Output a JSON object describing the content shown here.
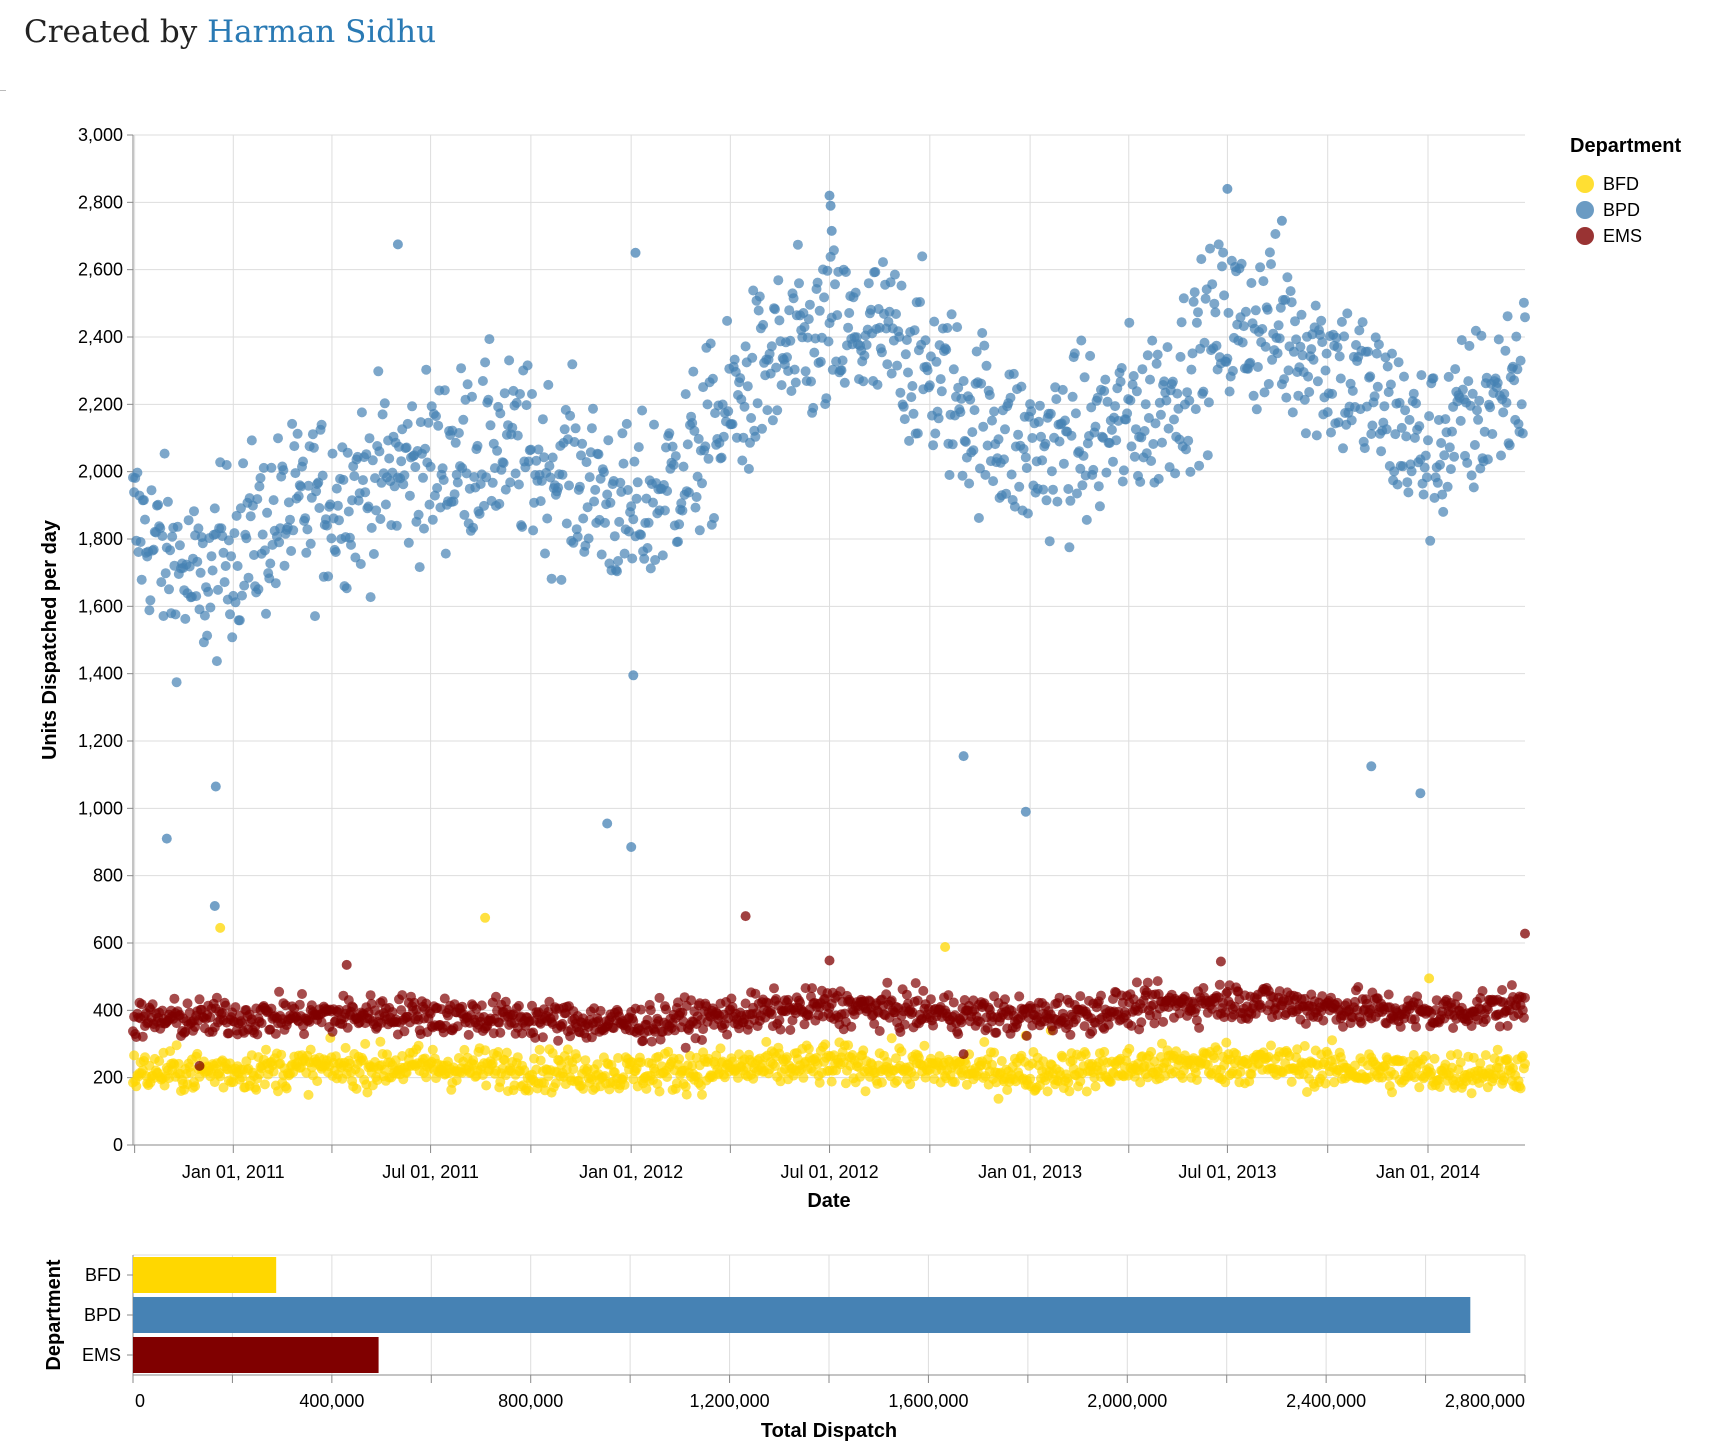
{
  "header": {
    "credit_prefix": "Created by",
    "credit_author": "Harman Sidhu"
  },
  "chart_data": [
    {
      "type": "scatter",
      "xlabel": "Date",
      "ylabel": "Units Dispatched per day",
      "x_range": [
        "2010-10-01",
        "2014-03-31"
      ],
      "ylim": [
        0,
        3000
      ],
      "y_ticks": [
        0,
        200,
        400,
        600,
        800,
        1000,
        1200,
        1400,
        1600,
        1800,
        2000,
        2200,
        2400,
        2600,
        2800,
        3000
      ],
      "x_tick_labels": [
        {
          "date": "2011-01-01",
          "label": "Jan 01, 2011"
        },
        {
          "date": "2011-07-01",
          "label": "Jul 01, 2011"
        },
        {
          "date": "2012-01-01",
          "label": "Jan 01, 2012"
        },
        {
          "date": "2012-07-01",
          "label": "Jul 01, 2012"
        },
        {
          "date": "2013-01-01",
          "label": "Jan 01, 2013"
        },
        {
          "date": "2013-07-01",
          "label": "Jul 01, 2013"
        },
        {
          "date": "2014-01-01",
          "label": "Jan 01, 2014"
        }
      ],
      "grid": true,
      "legend": {
        "title": "Department",
        "placement": "top-right",
        "items": [
          {
            "label": "BFD",
            "color": "#FFD700"
          },
          {
            "label": "BPD",
            "color": "#4682B4"
          },
          {
            "label": "EMS",
            "color": "#800000"
          }
        ]
      },
      "series": [
        {
          "name": "BFD",
          "color": "#FFD700",
          "trend": [
            [
              "2010-10-01",
              215
            ],
            [
              "2011-06-01",
              235
            ],
            [
              "2012-01-01",
              215
            ],
            [
              "2012-07-01",
              240
            ],
            [
              "2013-01-01",
              215
            ],
            [
              "2013-07-01",
              245
            ],
            [
              "2014-01-01",
              215
            ],
            [
              "2014-03-31",
              225
            ]
          ],
          "spread": 30,
          "outliers": [
            [
              "2010-12-20",
              645
            ],
            [
              "2011-08-20",
              675
            ],
            [
              "2012-10-15",
              588
            ],
            [
              "2014-01-02",
              495
            ],
            [
              "2012-12-28",
              325
            ],
            [
              "2013-01-20",
              340
            ]
          ]
        },
        {
          "name": "BPD",
          "color": "#4682B4",
          "trend": [
            [
              "2010-10-01",
              1850
            ],
            [
              "2010-12-01",
              1650
            ],
            [
              "2011-01-01",
              1780
            ],
            [
              "2011-03-01",
              1880
            ],
            [
              "2011-06-01",
              2000
            ],
            [
              "2011-09-01",
              2080
            ],
            [
              "2011-12-01",
              1950
            ],
            [
              "2012-01-01",
              1850
            ],
            [
              "2012-03-01",
              2050
            ],
            [
              "2012-05-01",
              2300
            ],
            [
              "2012-07-01",
              2400
            ],
            [
              "2012-09-01",
              2380
            ],
            [
              "2012-11-01",
              2200
            ],
            [
              "2013-01-01",
              2050
            ],
            [
              "2013-03-01",
              2100
            ],
            [
              "2013-05-01",
              2200
            ],
            [
              "2013-07-01",
              2450
            ],
            [
              "2013-09-01",
              2400
            ],
            [
              "2013-11-01",
              2250
            ],
            [
              "2014-01-01",
              2050
            ],
            [
              "2014-03-31",
              2300
            ]
          ],
          "spread": 130,
          "outliers": [
            [
              "2010-11-01",
              910
            ],
            [
              "2010-12-15",
              710
            ],
            [
              "2010-12-16",
              1065
            ],
            [
              "2011-06-01",
              2675
            ],
            [
              "2011-12-10",
              955
            ],
            [
              "2012-01-01",
              885
            ],
            [
              "2012-01-03",
              1395
            ],
            [
              "2012-01-05",
              2650
            ],
            [
              "2012-07-01",
              2820
            ],
            [
              "2012-07-02",
              2790
            ],
            [
              "2012-07-03",
              2715
            ],
            [
              "2012-11-01",
              1155
            ],
            [
              "2012-12-28",
              990
            ],
            [
              "2013-07-01",
              2840
            ],
            [
              "2013-08-20",
              2745
            ],
            [
              "2013-11-10",
              1125
            ],
            [
              "2013-12-25",
              1045
            ]
          ]
        },
        {
          "name": "EMS",
          "color": "#800000",
          "trend": [
            [
              "2010-10-01",
              370
            ],
            [
              "2011-06-01",
              390
            ],
            [
              "2012-01-01",
              360
            ],
            [
              "2012-07-01",
              410
            ],
            [
              "2013-01-01",
              380
            ],
            [
              "2013-07-01",
              430
            ],
            [
              "2014-01-01",
              390
            ],
            [
              "2014-03-31",
              415
            ]
          ],
          "spread": 28,
          "outliers": [
            [
              "2012-04-15",
              680
            ],
            [
              "2014-03-31",
              628
            ],
            [
              "2012-07-01",
              548
            ],
            [
              "2011-04-15",
              535
            ],
            [
              "2013-06-25",
              545
            ],
            [
              "2010-12-01",
              235
            ],
            [
              "2012-11-01",
              270
            ]
          ]
        }
      ]
    },
    {
      "type": "bar",
      "orientation": "horizontal",
      "xlabel": "Total Dispatch",
      "ylabel": "Department",
      "categories": [
        "BFD",
        "BPD",
        "EMS"
      ],
      "values": [
        288000,
        2690000,
        494000
      ],
      "colors": [
        "#FFD700",
        "#4682B4",
        "#800000"
      ],
      "xlim": [
        0,
        2800000
      ],
      "x_ticks": [
        0,
        400000,
        800000,
        1200000,
        1600000,
        2000000,
        2400000,
        2800000
      ],
      "x_tick_labels": [
        "0",
        "400,000",
        "800,000",
        "1,200,000",
        "1,600,000",
        "2,000,000",
        "2,400,000",
        "2,800,000"
      ],
      "grid": true
    }
  ]
}
